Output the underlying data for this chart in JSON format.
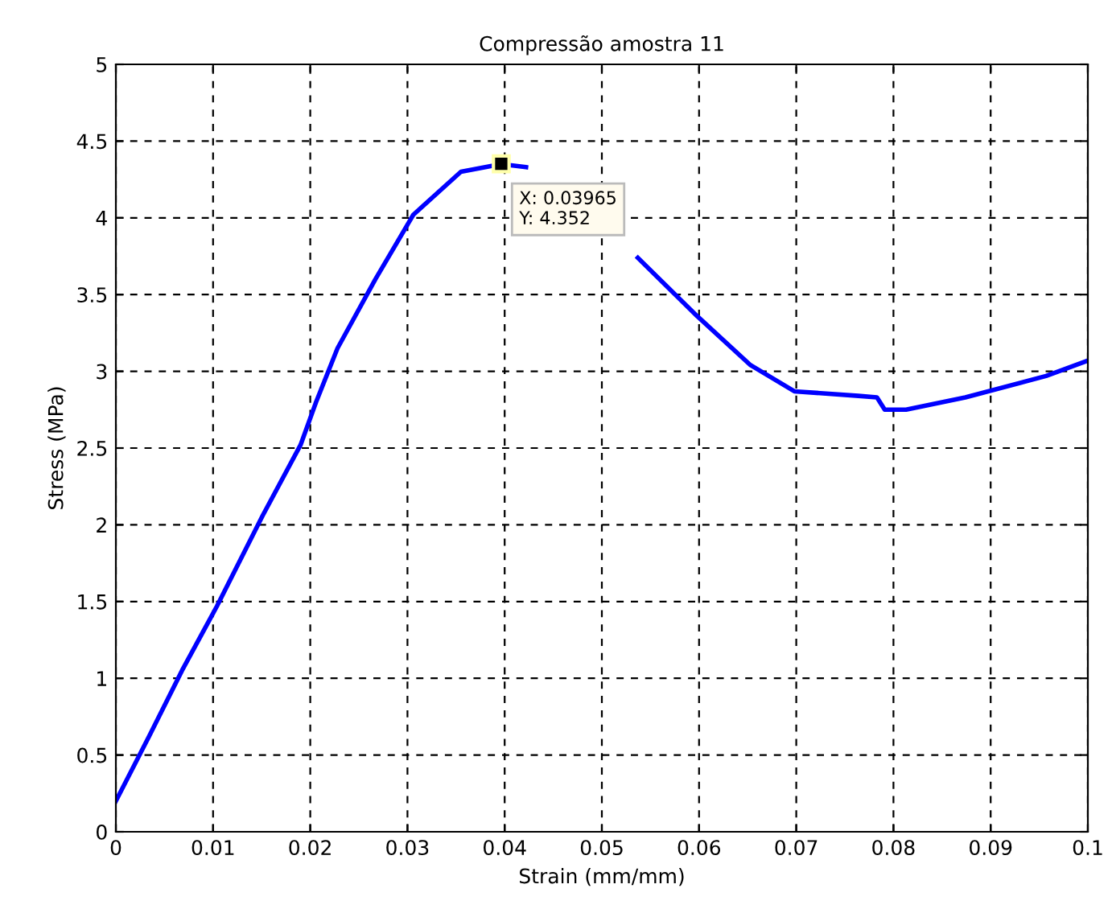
{
  "chart_data": {
    "type": "line",
    "title": "Compressão amostra 11",
    "xlabel": "Strain (mm/mm)",
    "ylabel": "Stress (MPa)",
    "series": [
      {
        "color": "#0000ff",
        "x": [
          0,
          0.0034,
          0.0068,
          0.0104,
          0.0151,
          0.019,
          0.0206,
          0.0228,
          0.0267,
          0.0306,
          0.0355,
          0.03965,
          0.0422,
          0.048,
          0.0537,
          0.0598,
          0.0653,
          0.0698,
          0.0764,
          0.0783,
          0.0791,
          0.0813,
          0.0874,
          0.0957,
          0.1
        ],
        "values": [
          0.2,
          0.62,
          1.05,
          1.47,
          2.06,
          2.52,
          2.8,
          3.15,
          3.6,
          4.02,
          4.3,
          4.35,
          4.33,
          null,
          3.74,
          3.36,
          3.04,
          2.87,
          2.84,
          2.83,
          2.75,
          2.75,
          2.83,
          2.97,
          3.07
        ]
      }
    ],
    "annotations": [
      {
        "text": "X: 0.03965\nY: 4.352",
        "x": 0.03965,
        "y": 4.352
      }
    ],
    "xlim": [
      0,
      0.1
    ],
    "ylim": [
      0,
      5
    ],
    "xticks": [
      0,
      0.01,
      0.02,
      0.03,
      0.04,
      0.05,
      0.06,
      0.07,
      0.08,
      0.09,
      0.1
    ],
    "yticks": [
      0,
      0.5,
      1,
      1.5,
      2,
      2.5,
      3,
      3.5,
      4,
      4.5,
      5
    ],
    "grid": true,
    "line_style": "solid",
    "marker": "none"
  }
}
